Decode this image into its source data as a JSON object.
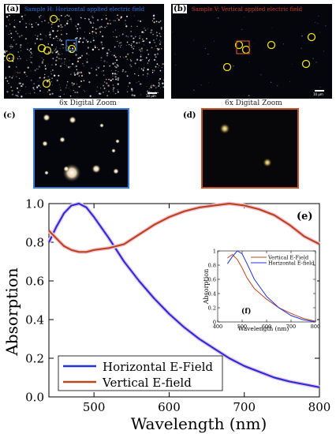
{
  "panels": {
    "a": {
      "letter": "(a)",
      "caption": "Sample H: Horizontal applied electric field",
      "scale_label": "10 μm",
      "caption_color": "#2f6fd6"
    },
    "b": {
      "letter": "(b)",
      "caption": "Sample V: Vertical applied electric field",
      "scale_label": "10 μm",
      "caption_color": "#c0392b"
    },
    "c": {
      "letter": "(c)",
      "zoom_label": "6x Digital Zoom",
      "frame_color": "#3a7bd5"
    },
    "d": {
      "letter": "(d)",
      "zoom_label": "6x Digital Zoom",
      "frame_color": "#c0532b"
    },
    "e": {
      "letter": "(e)"
    },
    "f": {
      "letter": "(f)"
    }
  },
  "chart_data": [
    {
      "id": "main",
      "type": "line",
      "xlabel": "Wavelength (nm)",
      "ylabel": "Absorption",
      "xlim": [
        440,
        800
      ],
      "ylim": [
        0,
        1.0
      ],
      "xticks": [
        500,
        600,
        700,
        800
      ],
      "yticks": [
        0.0,
        0.2,
        0.4,
        0.6,
        0.8,
        1.0
      ],
      "legend_position": "bottom-left",
      "series": [
        {
          "name": "Horizontal E-Field",
          "color": "#2233dd",
          "x": [
            440,
            450,
            460,
            470,
            480,
            490,
            500,
            520,
            540,
            560,
            580,
            600,
            620,
            640,
            660,
            680,
            700,
            720,
            740,
            760,
            780,
            800
          ],
          "y": [
            0.8,
            0.88,
            0.95,
            0.99,
            1.0,
            0.98,
            0.93,
            0.82,
            0.7,
            0.6,
            0.51,
            0.43,
            0.36,
            0.3,
            0.25,
            0.2,
            0.16,
            0.13,
            0.1,
            0.08,
            0.065,
            0.05
          ]
        },
        {
          "name": "Vertical E-field",
          "color": "#b8471e",
          "x": [
            440,
            450,
            460,
            470,
            480,
            490,
            500,
            520,
            540,
            560,
            580,
            600,
            620,
            640,
            660,
            680,
            700,
            720,
            740,
            760,
            780,
            800
          ],
          "y": [
            0.86,
            0.82,
            0.78,
            0.76,
            0.75,
            0.75,
            0.76,
            0.77,
            0.79,
            0.84,
            0.89,
            0.93,
            0.96,
            0.98,
            0.99,
            1.0,
            0.99,
            0.97,
            0.94,
            0.89,
            0.83,
            0.79
          ]
        }
      ]
    },
    {
      "id": "inset",
      "type": "line",
      "xlabel": "Wavelength (nm)",
      "ylabel": "Absorption",
      "xlim": [
        400,
        800
      ],
      "ylim": [
        0,
        1.0
      ],
      "xticks": [
        400,
        500,
        600,
        700,
        800
      ],
      "yticks": [
        0,
        0.2,
        0.4,
        0.6,
        0.8,
        1
      ],
      "legend_position": "top-right",
      "series": [
        {
          "name": "Vertical E-Field",
          "color": "#b8471e",
          "x": [
            440,
            460,
            480,
            500,
            520,
            550,
            600,
            650,
            700,
            750,
            800
          ],
          "y": [
            0.9,
            0.95,
            0.88,
            0.76,
            0.62,
            0.47,
            0.32,
            0.2,
            0.12,
            0.05,
            0.01
          ]
        },
        {
          "name": "Horizontal E-field",
          "color": "#2233dd",
          "x": [
            440,
            460,
            480,
            500,
            520,
            550,
            600,
            650,
            700,
            750,
            800
          ],
          "y": [
            0.82,
            0.92,
            1.0,
            0.96,
            0.82,
            0.6,
            0.36,
            0.2,
            0.09,
            0.03,
            0.0
          ]
        }
      ]
    }
  ]
}
